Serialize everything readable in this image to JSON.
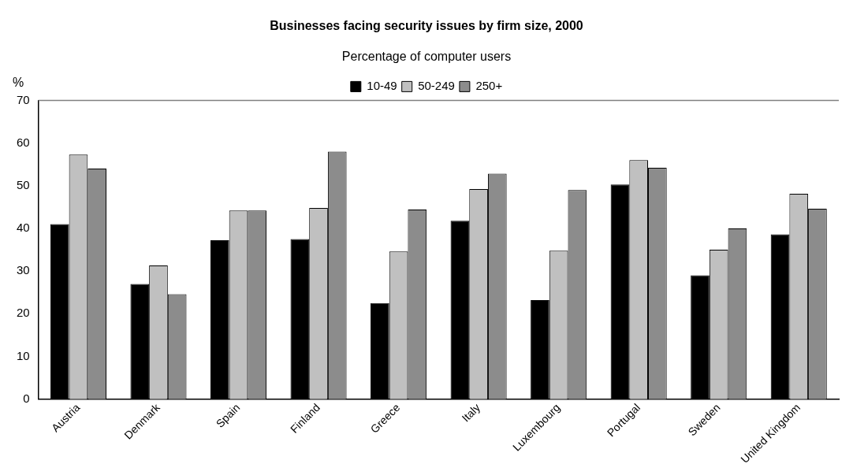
{
  "chart_data": {
    "type": "bar",
    "title": "Businesses facing security issues by firm size, 2000",
    "subtitle": "Percentage of computer users",
    "ylabel": "%",
    "categories": [
      "Austria",
      "Denmark",
      "Spain",
      "Finland",
      "Greece",
      "Italy",
      "Luxembourg",
      "Portugal",
      "Sweden",
      "United Kingdom"
    ],
    "series": [
      {
        "name": "10-49",
        "color": "#000000",
        "values": [
          41,
          27,
          37.2,
          37.5,
          22.5,
          41.8,
          23.2,
          50.3,
          29,
          38.6
        ]
      },
      {
        "name": "50-249",
        "color": "#c0c0c0",
        "values": [
          57.3,
          31.3,
          44.2,
          44.8,
          34.6,
          49.2,
          34.8,
          56,
          35,
          48.1
        ]
      },
      {
        "name": "250+",
        "color": "#8c8c8c",
        "values": [
          54,
          24.6,
          44.2,
          58,
          44.4,
          52.8,
          49,
          54.2,
          40,
          44.6
        ]
      }
    ],
    "ylim": [
      0,
      70
    ],
    "yticks": [
      0,
      10,
      20,
      30,
      40,
      50,
      60,
      70
    ],
    "grid": false,
    "legend": "top"
  }
}
